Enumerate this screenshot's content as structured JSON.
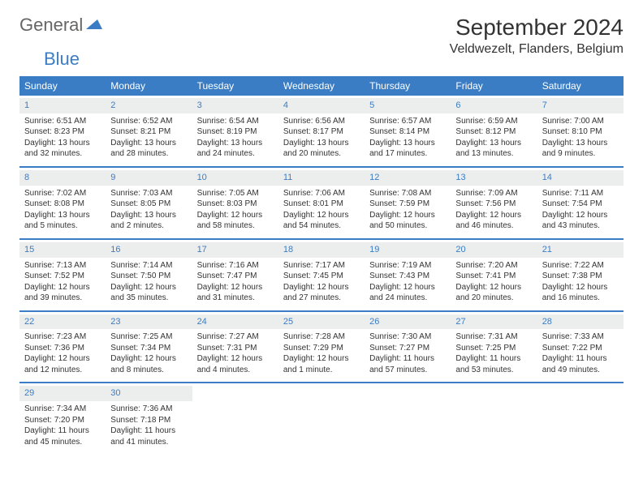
{
  "logo": {
    "text1": "General",
    "text2": "Blue"
  },
  "title": "September 2024",
  "location": "Veldwezelt, Flanders, Belgium",
  "colors": {
    "accent": "#3b7dc4",
    "daynum_bg": "#eceded",
    "text": "#333333",
    "bg": "#ffffff"
  },
  "day_labels": [
    "Sunday",
    "Monday",
    "Tuesday",
    "Wednesday",
    "Thursday",
    "Friday",
    "Saturday"
  ],
  "weeks": [
    [
      {
        "n": "1",
        "sunrise": "6:51 AM",
        "sunset": "8:23 PM",
        "dl": "13 hours and 32 minutes."
      },
      {
        "n": "2",
        "sunrise": "6:52 AM",
        "sunset": "8:21 PM",
        "dl": "13 hours and 28 minutes."
      },
      {
        "n": "3",
        "sunrise": "6:54 AM",
        "sunset": "8:19 PM",
        "dl": "13 hours and 24 minutes."
      },
      {
        "n": "4",
        "sunrise": "6:56 AM",
        "sunset": "8:17 PM",
        "dl": "13 hours and 20 minutes."
      },
      {
        "n": "5",
        "sunrise": "6:57 AM",
        "sunset": "8:14 PM",
        "dl": "13 hours and 17 minutes."
      },
      {
        "n": "6",
        "sunrise": "6:59 AM",
        "sunset": "8:12 PM",
        "dl": "13 hours and 13 minutes."
      },
      {
        "n": "7",
        "sunrise": "7:00 AM",
        "sunset": "8:10 PM",
        "dl": "13 hours and 9 minutes."
      }
    ],
    [
      {
        "n": "8",
        "sunrise": "7:02 AM",
        "sunset": "8:08 PM",
        "dl": "13 hours and 5 minutes."
      },
      {
        "n": "9",
        "sunrise": "7:03 AM",
        "sunset": "8:05 PM",
        "dl": "13 hours and 2 minutes."
      },
      {
        "n": "10",
        "sunrise": "7:05 AM",
        "sunset": "8:03 PM",
        "dl": "12 hours and 58 minutes."
      },
      {
        "n": "11",
        "sunrise": "7:06 AM",
        "sunset": "8:01 PM",
        "dl": "12 hours and 54 minutes."
      },
      {
        "n": "12",
        "sunrise": "7:08 AM",
        "sunset": "7:59 PM",
        "dl": "12 hours and 50 minutes."
      },
      {
        "n": "13",
        "sunrise": "7:09 AM",
        "sunset": "7:56 PM",
        "dl": "12 hours and 46 minutes."
      },
      {
        "n": "14",
        "sunrise": "7:11 AM",
        "sunset": "7:54 PM",
        "dl": "12 hours and 43 minutes."
      }
    ],
    [
      {
        "n": "15",
        "sunrise": "7:13 AM",
        "sunset": "7:52 PM",
        "dl": "12 hours and 39 minutes."
      },
      {
        "n": "16",
        "sunrise": "7:14 AM",
        "sunset": "7:50 PM",
        "dl": "12 hours and 35 minutes."
      },
      {
        "n": "17",
        "sunrise": "7:16 AM",
        "sunset": "7:47 PM",
        "dl": "12 hours and 31 minutes."
      },
      {
        "n": "18",
        "sunrise": "7:17 AM",
        "sunset": "7:45 PM",
        "dl": "12 hours and 27 minutes."
      },
      {
        "n": "19",
        "sunrise": "7:19 AM",
        "sunset": "7:43 PM",
        "dl": "12 hours and 24 minutes."
      },
      {
        "n": "20",
        "sunrise": "7:20 AM",
        "sunset": "7:41 PM",
        "dl": "12 hours and 20 minutes."
      },
      {
        "n": "21",
        "sunrise": "7:22 AM",
        "sunset": "7:38 PM",
        "dl": "12 hours and 16 minutes."
      }
    ],
    [
      {
        "n": "22",
        "sunrise": "7:23 AM",
        "sunset": "7:36 PM",
        "dl": "12 hours and 12 minutes."
      },
      {
        "n": "23",
        "sunrise": "7:25 AM",
        "sunset": "7:34 PM",
        "dl": "12 hours and 8 minutes."
      },
      {
        "n": "24",
        "sunrise": "7:27 AM",
        "sunset": "7:31 PM",
        "dl": "12 hours and 4 minutes."
      },
      {
        "n": "25",
        "sunrise": "7:28 AM",
        "sunset": "7:29 PM",
        "dl": "12 hours and 1 minute."
      },
      {
        "n": "26",
        "sunrise": "7:30 AM",
        "sunset": "7:27 PM",
        "dl": "11 hours and 57 minutes."
      },
      {
        "n": "27",
        "sunrise": "7:31 AM",
        "sunset": "7:25 PM",
        "dl": "11 hours and 53 minutes."
      },
      {
        "n": "28",
        "sunrise": "7:33 AM",
        "sunset": "7:22 PM",
        "dl": "11 hours and 49 minutes."
      }
    ],
    [
      {
        "n": "29",
        "sunrise": "7:34 AM",
        "sunset": "7:20 PM",
        "dl": "11 hours and 45 minutes."
      },
      {
        "n": "30",
        "sunrise": "7:36 AM",
        "sunset": "7:18 PM",
        "dl": "11 hours and 41 minutes."
      },
      null,
      null,
      null,
      null,
      null
    ]
  ],
  "labels": {
    "sunrise": "Sunrise: ",
    "sunset": "Sunset: ",
    "daylight": "Daylight: "
  }
}
